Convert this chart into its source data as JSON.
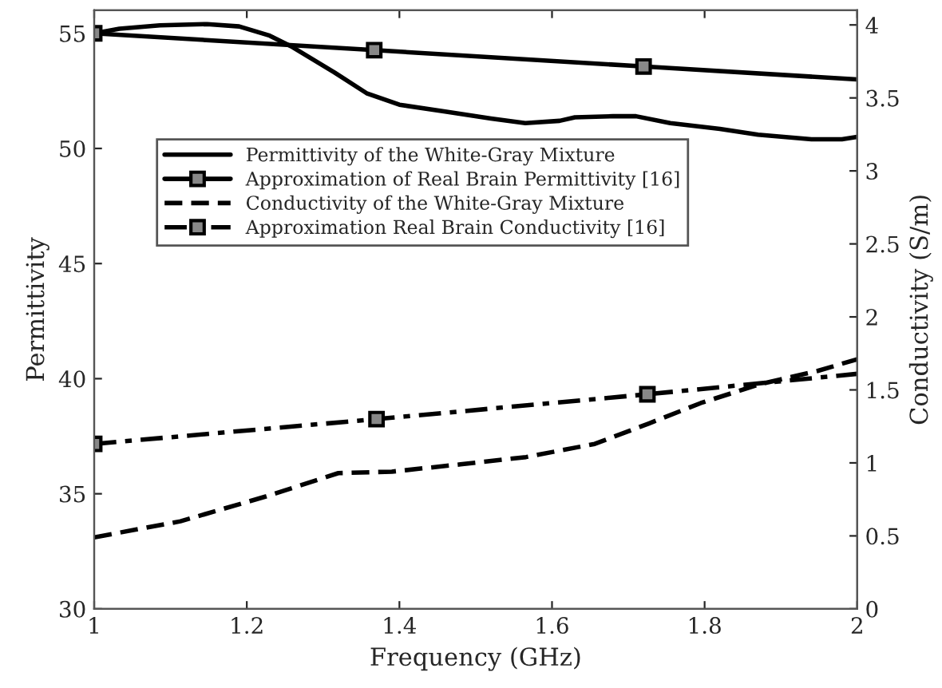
{
  "chart_data": {
    "type": "line",
    "xlabel": "Frequency (GHz)",
    "ylabel": "Permittivity",
    "y2label": "Conductivity (S/m)",
    "xlim": [
      1,
      2
    ],
    "xticks": [
      1,
      {
        "value": 1.2,
        "label": "1.2"
      },
      {
        "value": 1.4,
        "label": "1.4"
      },
      {
        "value": 1.6,
        "label": "1.6"
      },
      {
        "value": 1.8,
        "label": "1.8"
      },
      2
    ],
    "ylim": [
      30,
      56
    ],
    "yticks": [
      30,
      35,
      40,
      45,
      50,
      55
    ],
    "y2lim": [
      0,
      4.1
    ],
    "y2ticks": [
      0,
      0.5,
      1,
      1.5,
      2,
      2.5,
      3,
      3.5,
      4
    ],
    "grid": false,
    "legend": "upper left",
    "series": [
      {
        "name": "Permittivity of the White-Gray Mixture",
        "color": "#000000",
        "line_style": "solid",
        "marker": "none",
        "x": [
          1.0,
          1.033,
          1.086,
          1.148,
          1.19,
          1.23,
          1.26,
          1.315,
          1.357,
          1.4,
          1.46,
          1.52,
          1.565,
          1.61,
          1.63,
          1.68,
          1.71,
          1.755,
          1.82,
          1.87,
          1.94,
          1.98,
          2.0
        ],
        "values": [
          55.0,
          55.2,
          55.35,
          55.4,
          55.3,
          54.9,
          54.4,
          53.3,
          52.4,
          51.9,
          51.6,
          51.3,
          51.1,
          51.2,
          51.35,
          51.4,
          51.4,
          51.1,
          50.85,
          50.6,
          50.4,
          50.4,
          50.5
        ]
      },
      {
        "name": "Approximation of Real Brain Permittivity [16]",
        "color": "#000000",
        "line_style": "solid",
        "marker": "square",
        "x": [
          1.0,
          1.367,
          1.72,
          2.0
        ],
        "values": [
          55.0,
          54.27,
          53.56,
          53.0
        ]
      },
      {
        "name": "Conductivity of the White-Gray Mixture",
        "color": "#000000",
        "line_style": "dashed",
        "marker": "none",
        "axis": "y2",
        "x": [
          1.0,
          1.113,
          1.225,
          1.32,
          1.39,
          1.48,
          1.566,
          1.656,
          1.727,
          1.795,
          1.873,
          1.948,
          2.0
        ],
        "values": [
          0.49,
          0.6,
          0.77,
          0.93,
          0.94,
          0.99,
          1.04,
          1.13,
          1.27,
          1.41,
          1.54,
          1.63,
          1.71
        ]
      },
      {
        "name": "Approximation Real Brain Conductivity [16]",
        "color": "#000000",
        "line_style": "dashdot",
        "marker": "square",
        "axis": "y2",
        "x": [
          1.0,
          1.37,
          1.725,
          2.0
        ],
        "values": [
          1.13,
          1.3,
          1.47,
          1.61
        ]
      }
    ]
  }
}
